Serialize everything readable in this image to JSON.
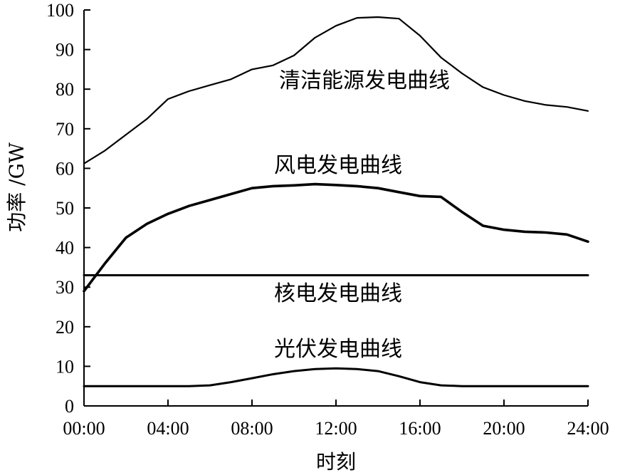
{
  "chart_data": {
    "type": "line",
    "title": "",
    "xlabel": "时刻",
    "ylabel": "功率 /GW",
    "xlim": [
      "00:00",
      "24:00"
    ],
    "ylim": [
      0,
      100
    ],
    "x_ticks": [
      "00:00",
      "04:00",
      "08:00",
      "12:00",
      "16:00",
      "20:00",
      "24:00"
    ],
    "y_ticks": [
      "0",
      "10",
      "20",
      "30",
      "40",
      "50",
      "60",
      "70",
      "80",
      "90",
      "100"
    ],
    "grid": false,
    "x": [
      "00:00",
      "01:00",
      "02:00",
      "03:00",
      "04:00",
      "05:00",
      "06:00",
      "07:00",
      "08:00",
      "09:00",
      "10:00",
      "11:00",
      "12:00",
      "13:00",
      "14:00",
      "15:00",
      "16:00",
      "17:00",
      "18:00",
      "19:00",
      "20:00",
      "21:00",
      "22:00",
      "23:00",
      "24:00"
    ],
    "series": [
      {
        "name": "清洁能源发电曲线",
        "values": [
          61.2,
          64.5,
          68.5,
          72.5,
          77.5,
          79.5,
          81,
          82.5,
          85,
          86,
          88.5,
          93,
          96,
          98,
          98.2,
          97.8,
          93.5,
          88,
          84,
          80.5,
          78.5,
          77,
          76,
          75.5,
          74.5
        ]
      },
      {
        "name": "风电发电曲线",
        "values": [
          29,
          36,
          42.5,
          46,
          48.5,
          50.5,
          52,
          53.5,
          55,
          55.5,
          55.7,
          56,
          55.8,
          55.5,
          55,
          54,
          53,
          52.8,
          49,
          45.5,
          44.5,
          44,
          43.8,
          43.3,
          41.5
        ]
      },
      {
        "name": "核电发电曲线",
        "values": [
          33,
          33,
          33,
          33,
          33,
          33,
          33,
          33,
          33,
          33,
          33,
          33,
          33,
          33,
          33,
          33,
          33,
          33,
          33,
          33,
          33,
          33,
          33,
          33,
          33
        ]
      },
      {
        "name": "光伏发电曲线",
        "values": [
          5,
          5,
          5,
          5,
          5,
          5,
          5.2,
          6,
          7,
          8,
          8.8,
          9.3,
          9.5,
          9.3,
          8.8,
          7.5,
          6,
          5.2,
          5,
          5,
          5,
          5,
          5,
          5,
          5
        ]
      }
    ]
  }
}
